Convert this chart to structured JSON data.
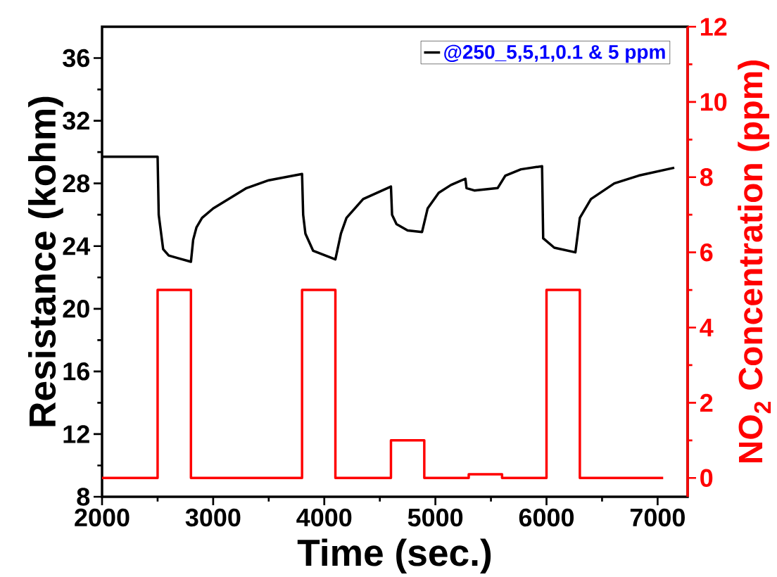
{
  "chart_data": {
    "type": "line",
    "xlabel": "Time (sec.)",
    "ylabel": "Resistance (kohm)",
    "y2label": "NO$_{2}$ Concentration (ppm)",
    "xlim": [
      2000,
      7270
    ],
    "ylim": [
      8,
      38
    ],
    "y2lim": [
      -0.5,
      12
    ],
    "xticks": [
      2000,
      3000,
      4000,
      5000,
      6000,
      7000
    ],
    "yticks": [
      8,
      12,
      16,
      20,
      24,
      28,
      32,
      36
    ],
    "y2ticks": [
      0,
      2,
      4,
      6,
      8,
      10,
      12
    ],
    "grid": false,
    "legend": "top right",
    "marker": "none",
    "line_style": "solid",
    "series": [
      {
        "name": "@250_5,5,1,0.1 & 5 ppm",
        "color": "#000000",
        "x": [
          2000,
          2500,
          2510,
          2550,
          2600,
          2700,
          2800,
          2820,
          2850,
          2900,
          3000,
          3300,
          3500,
          3800,
          3810,
          3830,
          3900,
          4100,
          4150,
          4200,
          4350,
          4600,
          4610,
          4650,
          4750,
          4880,
          4930,
          5030,
          5140,
          5270,
          5280,
          5350,
          5560,
          5630,
          5770,
          5960,
          5970,
          6070,
          6260,
          6300,
          6400,
          6610,
          6830,
          7150
        ],
        "values": [
          29.7,
          29.7,
          26.0,
          23.8,
          23.4,
          23.2,
          23.0,
          24.4,
          25.2,
          25.8,
          26.4,
          27.7,
          28.2,
          28.6,
          26.0,
          24.8,
          23.7,
          23.15,
          24.8,
          25.8,
          27.0,
          27.8,
          26.0,
          25.4,
          25.0,
          24.9,
          26.4,
          27.4,
          27.9,
          28.3,
          27.7,
          27.55,
          27.7,
          28.5,
          28.9,
          29.1,
          24.5,
          23.9,
          23.6,
          25.8,
          27.0,
          28.0,
          28.5,
          29.0
        ]
      },
      {
        "type": "step",
        "axis": "y2",
        "color": "#ff0000",
        "x": [
          2000,
          2500,
          2800,
          3800,
          4100,
          4600,
          4900,
          5300,
          5600,
          6000,
          6300,
          7050
        ],
        "values": [
          0,
          5,
          0,
          5,
          0,
          1,
          0,
          0.1,
          0,
          5,
          0,
          0
        ]
      }
    ]
  }
}
